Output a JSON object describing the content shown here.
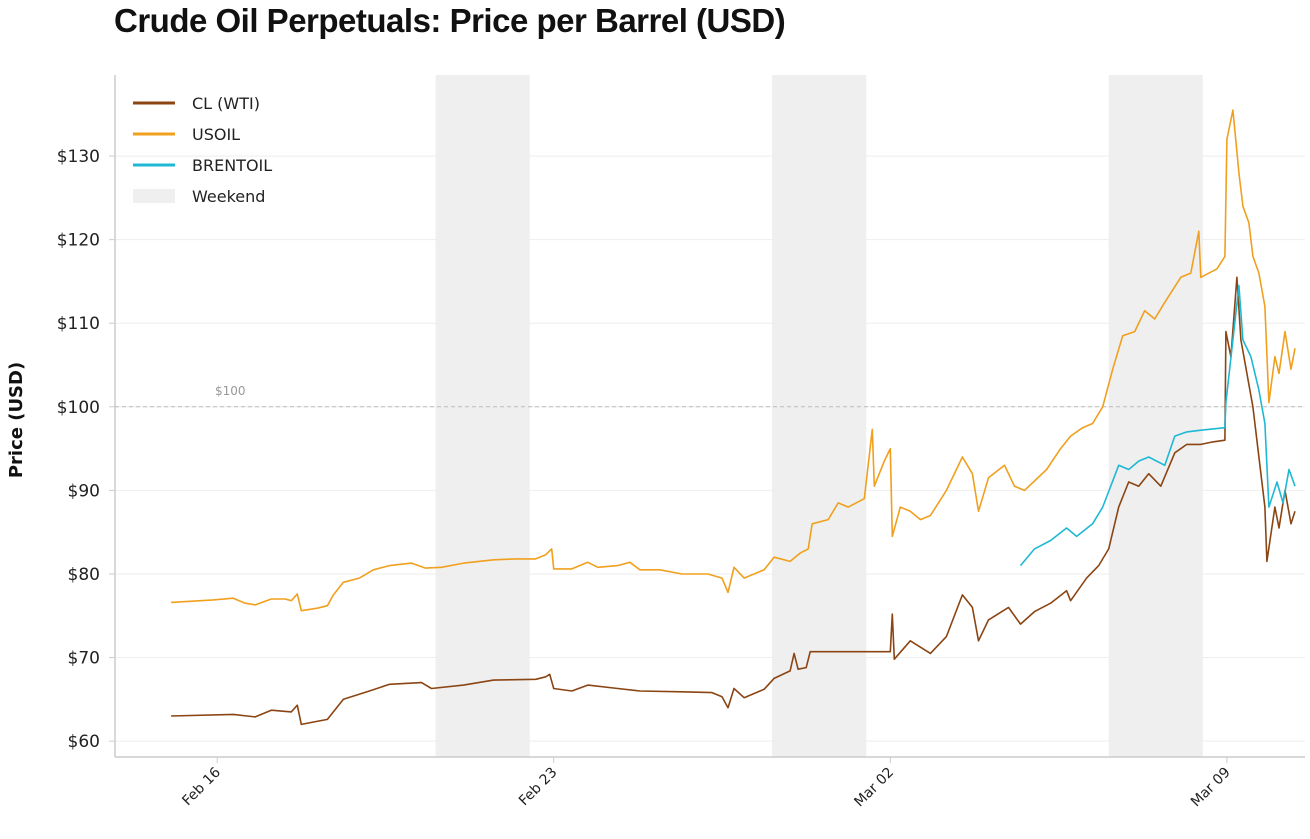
{
  "chart_data": {
    "type": "line",
    "title": "Crude Oil Perpetuals: Price per Barrel (USD)",
    "xlabel": "",
    "ylabel": "Price (USD)",
    "xlim": [
      "Feb 13 21:00",
      "Mar 10 15:00"
    ],
    "ylim": [
      58.1,
      139.7
    ],
    "grid": "horizontal",
    "legend_position": "top-left",
    "x_ticks": [
      {
        "at": "Feb 16 00:00",
        "label": "Feb 16"
      },
      {
        "at": "Feb 23 00:00",
        "label": "Feb 23"
      },
      {
        "at": "Mar 02 00:00",
        "label": "Mar 02"
      },
      {
        "at": "Mar 09 00:00",
        "label": "Mar 09"
      }
    ],
    "y_ticks": [
      {
        "value": 60,
        "label": "$60"
      },
      {
        "value": 70,
        "label": "$70"
      },
      {
        "value": 80,
        "label": "$80"
      },
      {
        "value": 90,
        "label": "$90"
      },
      {
        "value": 100,
        "label": "$100"
      },
      {
        "value": 110,
        "label": "$110"
      },
      {
        "value": 120,
        "label": "$120"
      },
      {
        "value": 130,
        "label": "$130"
      }
    ],
    "reference_line": {
      "value": 100,
      "label": "$100",
      "color": "#bbbbbb"
    },
    "shaded_regions": {
      "name": "Weekend",
      "color": "#efefef",
      "ranges": [
        [
          "Feb 20 13:00",
          "Feb 22 12:00"
        ],
        [
          "Feb 27 13:00",
          "Mar 01 12:00"
        ],
        [
          "Mar 06 13:00",
          "Mar 08 12:00"
        ]
      ]
    },
    "series": [
      {
        "name": "CL (WTI)",
        "color": "#8b4513",
        "points": [
          [
            "Feb 15 01:00",
            63.0
          ],
          [
            "Feb 16 08:00",
            63.2
          ],
          [
            "Feb 16 19:00",
            62.9
          ],
          [
            "Feb 17 03:00",
            63.7
          ],
          [
            "Feb 17 13:00",
            63.5
          ],
          [
            "Feb 17 16:00",
            64.3
          ],
          [
            "Feb 17 18:00",
            62.0
          ],
          [
            "Feb 18 07:00",
            62.6
          ],
          [
            "Feb 18 15:00",
            65.0
          ],
          [
            "Feb 19 04:00",
            66.0
          ],
          [
            "Feb 19 14:00",
            66.8
          ],
          [
            "Feb 20 06:00",
            67.0
          ],
          [
            "Feb 20 11:00",
            66.3
          ],
          [
            "Feb 21 03:00",
            66.7
          ],
          [
            "Feb 21 18:00",
            67.3
          ],
          [
            "Feb 22 15:00",
            67.4
          ],
          [
            "Feb 22 20:00",
            67.7
          ],
          [
            "Feb 22 22:00",
            68.0
          ],
          [
            "Feb 23 00:00",
            66.3
          ],
          [
            "Feb 23 09:00",
            66.0
          ],
          [
            "Feb 23 17:00",
            66.7
          ],
          [
            "Feb 24 08:00",
            66.3
          ],
          [
            "Feb 24 19:00",
            66.0
          ],
          [
            "Feb 25 16:00",
            65.9
          ],
          [
            "Feb 26 07:00",
            65.8
          ],
          [
            "Feb 26 12:00",
            65.3
          ],
          [
            "Feb 26 15:00",
            64.0
          ],
          [
            "Feb 26 18:00",
            66.3
          ],
          [
            "Feb 26 23:00",
            65.2
          ],
          [
            "Feb 27 09:00",
            66.2
          ],
          [
            "Feb 27 14:00",
            67.5
          ],
          [
            "Feb 27 22:00",
            68.4
          ],
          [
            "Feb 28 00:00",
            70.5
          ],
          [
            "Feb 28 02:00",
            68.6
          ],
          [
            "Feb 28 06:00",
            68.8
          ],
          [
            "Feb 28 08:00",
            70.7
          ],
          [
            "Mar 02 00:00",
            70.7
          ],
          [
            "Mar 02 01:00",
            75.2
          ],
          [
            "Mar 02 02:00",
            69.8
          ],
          [
            "Mar 02 10:00",
            72.0
          ],
          [
            "Mar 02 20:00",
            70.5
          ],
          [
            "Mar 03 04:00",
            72.5
          ],
          [
            "Mar 03 12:00",
            77.5
          ],
          [
            "Mar 03 17:00",
            76.0
          ],
          [
            "Mar 03 20:00",
            72.0
          ],
          [
            "Mar 04 01:00",
            74.5
          ],
          [
            "Mar 04 11:00",
            76.0
          ],
          [
            "Mar 04 17:00",
            74.0
          ],
          [
            "Mar 05 00:00",
            75.5
          ],
          [
            "Mar 05 08:00",
            76.5
          ],
          [
            "Mar 05 16:00",
            78.0
          ],
          [
            "Mar 05 18:00",
            76.8
          ],
          [
            "Mar 06 02:00",
            79.5
          ],
          [
            "Mar 06 08:00",
            81.0
          ],
          [
            "Mar 06 13:00",
            83.0
          ],
          [
            "Mar 06 18:00",
            88.0
          ],
          [
            "Mar 06 23:00",
            91.0
          ],
          [
            "Mar 07 04:00",
            90.5
          ],
          [
            "Mar 07 09:00",
            92.0
          ],
          [
            "Mar 07 15:00",
            90.5
          ],
          [
            "Mar 07 22:00",
            94.5
          ],
          [
            "Mar 08 04:00",
            95.5
          ],
          [
            "Mar 08 11:00",
            95.5
          ],
          [
            "Mar 08 17:00",
            95.8
          ],
          [
            "Mar 08 23:00",
            96.0
          ],
          [
            "Mar 08 23:30",
            109.0
          ],
          [
            "Mar 09 02:00",
            106.0
          ],
          [
            "Mar 09 05:00",
            115.5
          ],
          [
            "Mar 09 07:00",
            108.0
          ],
          [
            "Mar 09 10:00",
            104.0
          ],
          [
            "Mar 09 13:00",
            100.0
          ],
          [
            "Mar 09 16:00",
            94.0
          ],
          [
            "Mar 09 19:00",
            88.0
          ],
          [
            "Mar 09 20:00",
            81.5
          ],
          [
            "Mar 10 00:00",
            88.0
          ],
          [
            "Mar 10 02:00",
            85.5
          ],
          [
            "Mar 10 05:00",
            90.0
          ],
          [
            "Mar 10 08:00",
            86.0
          ],
          [
            "Mar 10 10:00",
            87.5
          ]
        ]
      },
      {
        "name": "USOIL",
        "color": "#f0a01e",
        "points": [
          [
            "Feb 15 01:00",
            76.6
          ],
          [
            "Feb 15 22:00",
            76.9
          ],
          [
            "Feb 16 08:00",
            77.1
          ],
          [
            "Feb 16 14:00",
            76.5
          ],
          [
            "Feb 16 19:00",
            76.3
          ],
          [
            "Feb 17 03:00",
            77.0
          ],
          [
            "Feb 17 10:00",
            77.0
          ],
          [
            "Feb 17 13:00",
            76.8
          ],
          [
            "Feb 17 16:00",
            77.6
          ],
          [
            "Feb 17 18:00",
            75.6
          ],
          [
            "Feb 18 02:00",
            75.9
          ],
          [
            "Feb 18 07:00",
            76.2
          ],
          [
            "Feb 18 10:00",
            77.5
          ],
          [
            "Feb 18 15:00",
            79.0
          ],
          [
            "Feb 18 23:00",
            79.5
          ],
          [
            "Feb 19 06:00",
            80.5
          ],
          [
            "Feb 19 14:00",
            81.0
          ],
          [
            "Feb 20 01:00",
            81.3
          ],
          [
            "Feb 20 08:00",
            80.7
          ],
          [
            "Feb 20 16:00",
            80.8
          ],
          [
            "Feb 21 03:00",
            81.3
          ],
          [
            "Feb 21 18:00",
            81.7
          ],
          [
            "Feb 22 05:00",
            81.8
          ],
          [
            "Feb 22 15:00",
            81.8
          ],
          [
            "Feb 22 20:00",
            82.3
          ],
          [
            "Feb 22 23:00",
            83.0
          ],
          [
            "Feb 23 00:00",
            80.6
          ],
          [
            "Feb 23 09:00",
            80.6
          ],
          [
            "Feb 23 17:00",
            81.4
          ],
          [
            "Feb 23 22:00",
            80.8
          ],
          [
            "Feb 24 08:00",
            81.0
          ],
          [
            "Feb 24 14:00",
            81.4
          ],
          [
            "Feb 24 19:00",
            80.5
          ],
          [
            "Feb 25 05:00",
            80.5
          ],
          [
            "Feb 25 16:00",
            80.0
          ],
          [
            "Feb 26 05:00",
            80.0
          ],
          [
            "Feb 26 12:00",
            79.5
          ],
          [
            "Feb 26 15:00",
            77.8
          ],
          [
            "Feb 26 18:00",
            80.8
          ],
          [
            "Feb 26 23:00",
            79.5
          ],
          [
            "Feb 27 09:00",
            80.5
          ],
          [
            "Feb 27 14:00",
            82.0
          ],
          [
            "Feb 27 22:00",
            81.5
          ],
          [
            "Feb 28 03:00",
            82.5
          ],
          [
            "Feb 28 07:00",
            83.0
          ],
          [
            "Feb 28 09:00",
            86.0
          ],
          [
            "Feb 28 17:00",
            86.5
          ],
          [
            "Feb 28 22:00",
            88.5
          ],
          [
            "Mar 01 03:00",
            88.0
          ],
          [
            "Mar 01 11:00",
            89.0
          ],
          [
            "Mar 01 15:00",
            97.3
          ],
          [
            "Mar 01 16:00",
            90.5
          ],
          [
            "Mar 01 21:00",
            93.5
          ],
          [
            "Mar 02 00:00",
            95.0
          ],
          [
            "Mar 02 01:00",
            84.5
          ],
          [
            "Mar 02 05:00",
            88.0
          ],
          [
            "Mar 02 10:00",
            87.5
          ],
          [
            "Mar 02 15:00",
            86.5
          ],
          [
            "Mar 02 20:00",
            87.0
          ],
          [
            "Mar 03 04:00",
            90.0
          ],
          [
            "Mar 03 12:00",
            94.0
          ],
          [
            "Mar 03 17:00",
            92.0
          ],
          [
            "Mar 03 20:00",
            87.5
          ],
          [
            "Mar 04 01:00",
            91.5
          ],
          [
            "Mar 04 09:00",
            93.0
          ],
          [
            "Mar 04 14:00",
            90.5
          ],
          [
            "Mar 04 19:00",
            90.0
          ],
          [
            "Mar 05 06:00",
            92.5
          ],
          [
            "Mar 05 13:00",
            95.0
          ],
          [
            "Mar 05 18:00",
            96.5
          ],
          [
            "Mar 06 00:00",
            97.5
          ],
          [
            "Mar 06 05:00",
            98.0
          ],
          [
            "Mar 06 10:00",
            100.0
          ],
          [
            "Mar 06 15:00",
            104.5
          ],
          [
            "Mar 06 20:00",
            108.5
          ],
          [
            "Mar 07 02:00",
            109.0
          ],
          [
            "Mar 07 07:00",
            111.5
          ],
          [
            "Mar 07 12:00",
            110.5
          ],
          [
            "Mar 07 17:00",
            112.5
          ],
          [
            "Mar 08 01:00",
            115.5
          ],
          [
            "Mar 08 06:00",
            116.0
          ],
          [
            "Mar 08 10:00",
            121.0
          ],
          [
            "Mar 08 11:00",
            115.5
          ],
          [
            "Mar 08 19:00",
            116.5
          ],
          [
            "Mar 08 23:00",
            118.0
          ],
          [
            "Mar 09 00:00",
            132.0
          ],
          [
            "Mar 09 03:00",
            135.5
          ],
          [
            "Mar 09 06:00",
            128.0
          ],
          [
            "Mar 09 08:00",
            124.0
          ],
          [
            "Mar 09 11:00",
            122.0
          ],
          [
            "Mar 09 13:00",
            118.0
          ],
          [
            "Mar 09 16:00",
            116.0
          ],
          [
            "Mar 09 19:00",
            112.0
          ],
          [
            "Mar 09 21:00",
            100.5
          ],
          [
            "Mar 10 00:00",
            106.0
          ],
          [
            "Mar 10 02:00",
            104.0
          ],
          [
            "Mar 10 05:00",
            109.0
          ],
          [
            "Mar 10 08:00",
            104.5
          ],
          [
            "Mar 10 10:00",
            107.0
          ]
        ]
      },
      {
        "name": "BRENTOIL",
        "color": "#1fb8d4",
        "points": [
          [
            "Mar 04 17:00",
            81.0
          ],
          [
            "Mar 05 00:00",
            83.0
          ],
          [
            "Mar 05 08:00",
            84.0
          ],
          [
            "Mar 05 16:00",
            85.5
          ],
          [
            "Mar 05 21:00",
            84.5
          ],
          [
            "Mar 06 05:00",
            86.0
          ],
          [
            "Mar 06 10:00",
            88.0
          ],
          [
            "Mar 06 18:00",
            93.0
          ],
          [
            "Mar 06 23:00",
            92.5
          ],
          [
            "Mar 07 04:00",
            93.5
          ],
          [
            "Mar 07 09:00",
            94.0
          ],
          [
            "Mar 07 17:00",
            93.0
          ],
          [
            "Mar 07 22:00",
            96.5
          ],
          [
            "Mar 08 04:00",
            97.0
          ],
          [
            "Mar 08 11:00",
            97.2
          ],
          [
            "Mar 08 23:00",
            97.5
          ],
          [
            "Mar 08 23:30",
            100.5
          ],
          [
            "Mar 09 03:00",
            108.0
          ],
          [
            "Mar 09 06:00",
            114.5
          ],
          [
            "Mar 09 08:00",
            108.0
          ],
          [
            "Mar 09 12:00",
            106.0
          ],
          [
            "Mar 09 16:00",
            102.0
          ],
          [
            "Mar 09 19:00",
            98.0
          ],
          [
            "Mar 09 21:00",
            88.0
          ],
          [
            "Mar 10 01:00",
            91.0
          ],
          [
            "Mar 10 04:00",
            88.5
          ],
          [
            "Mar 10 07:00",
            92.5
          ],
          [
            "Mar 10 10:00",
            90.5
          ]
        ]
      }
    ]
  }
}
